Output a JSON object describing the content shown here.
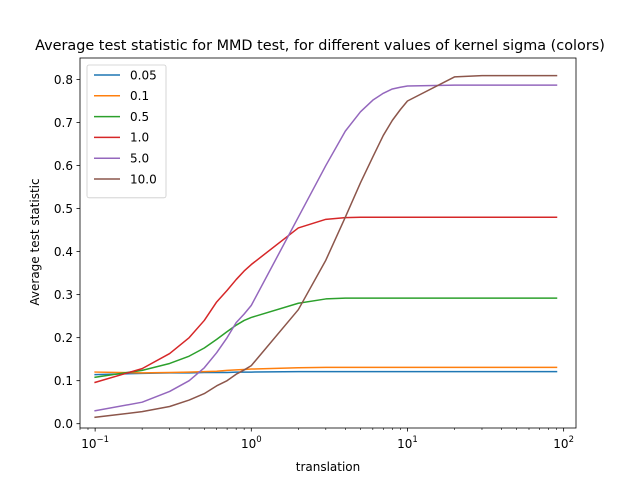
{
  "chart_data": {
    "type": "line",
    "title": "Average test statistic for MMD test, for different values of kernel sigma (colors)",
    "xlabel": "translation",
    "ylabel": "Average test statistic",
    "xscale": "log",
    "xlim": [
      0.08,
      120
    ],
    "ylim": [
      -0.01,
      0.85
    ],
    "x_ticks": [
      {
        "base": "10",
        "exp": "−1",
        "value": 0.1
      },
      {
        "base": "10",
        "exp": "0",
        "value": 1
      },
      {
        "base": "10",
        "exp": "1",
        "value": 10
      },
      {
        "base": "10",
        "exp": "2",
        "value": 100
      }
    ],
    "y_ticks": [
      "0.0",
      "0.1",
      "0.2",
      "0.3",
      "0.4",
      "0.5",
      "0.6",
      "0.7",
      "0.8"
    ],
    "grid": false,
    "legend_position": "top-left",
    "x": [
      0.1,
      0.2,
      0.3,
      0.4,
      0.5,
      0.6,
      0.7,
      0.8,
      0.9,
      1,
      2,
      3,
      4,
      5,
      6,
      7,
      8,
      9,
      10,
      20,
      30,
      40,
      50,
      60,
      70,
      80,
      90
    ],
    "series": [
      {
        "name": "0.05",
        "color": "#1f77b4",
        "values": [
          0.114,
          0.117,
          0.118,
          0.118,
          0.119,
          0.119,
          0.119,
          0.12,
          0.12,
          0.12,
          0.121,
          0.121,
          0.121,
          0.121,
          0.121,
          0.121,
          0.121,
          0.121,
          0.121,
          0.121,
          0.121,
          0.121,
          0.121,
          0.121,
          0.121,
          0.121,
          0.121
        ]
      },
      {
        "name": "0.1",
        "color": "#ff7f0e",
        "values": [
          0.12,
          0.118,
          0.119,
          0.12,
          0.121,
          0.122,
          0.124,
          0.125,
          0.126,
          0.127,
          0.13,
          0.131,
          0.131,
          0.131,
          0.131,
          0.131,
          0.131,
          0.131,
          0.131,
          0.131,
          0.131,
          0.131,
          0.131,
          0.131,
          0.131,
          0.131,
          0.131
        ]
      },
      {
        "name": "0.5",
        "color": "#2ca02c",
        "values": [
          0.108,
          0.124,
          0.14,
          0.157,
          0.176,
          0.196,
          0.214,
          0.229,
          0.24,
          0.247,
          0.28,
          0.29,
          0.292,
          0.292,
          0.292,
          0.292,
          0.292,
          0.292,
          0.292,
          0.292,
          0.292,
          0.292,
          0.292,
          0.292,
          0.292,
          0.292,
          0.292
        ]
      },
      {
        "name": "1.0",
        "color": "#d62728",
        "values": [
          0.096,
          0.128,
          0.163,
          0.2,
          0.24,
          0.283,
          0.31,
          0.335,
          0.355,
          0.37,
          0.455,
          0.475,
          0.479,
          0.48,
          0.48,
          0.48,
          0.48,
          0.48,
          0.48,
          0.48,
          0.48,
          0.48,
          0.48,
          0.48,
          0.48,
          0.48,
          0.48
        ]
      },
      {
        "name": "5.0",
        "color": "#9467bd",
        "values": [
          0.03,
          0.05,
          0.075,
          0.1,
          0.13,
          0.165,
          0.2,
          0.235,
          0.255,
          0.275,
          0.48,
          0.6,
          0.68,
          0.725,
          0.752,
          0.768,
          0.778,
          0.782,
          0.785,
          0.787,
          0.787,
          0.787,
          0.787,
          0.787,
          0.787,
          0.787,
          0.787
        ]
      },
      {
        "name": "10.0",
        "color": "#8c564b",
        "values": [
          0.015,
          0.028,
          0.04,
          0.055,
          0.07,
          0.088,
          0.1,
          0.115,
          0.125,
          0.135,
          0.265,
          0.38,
          0.48,
          0.56,
          0.62,
          0.67,
          0.705,
          0.73,
          0.75,
          0.806,
          0.809,
          0.809,
          0.809,
          0.809,
          0.809,
          0.809,
          0.809
        ]
      }
    ]
  }
}
